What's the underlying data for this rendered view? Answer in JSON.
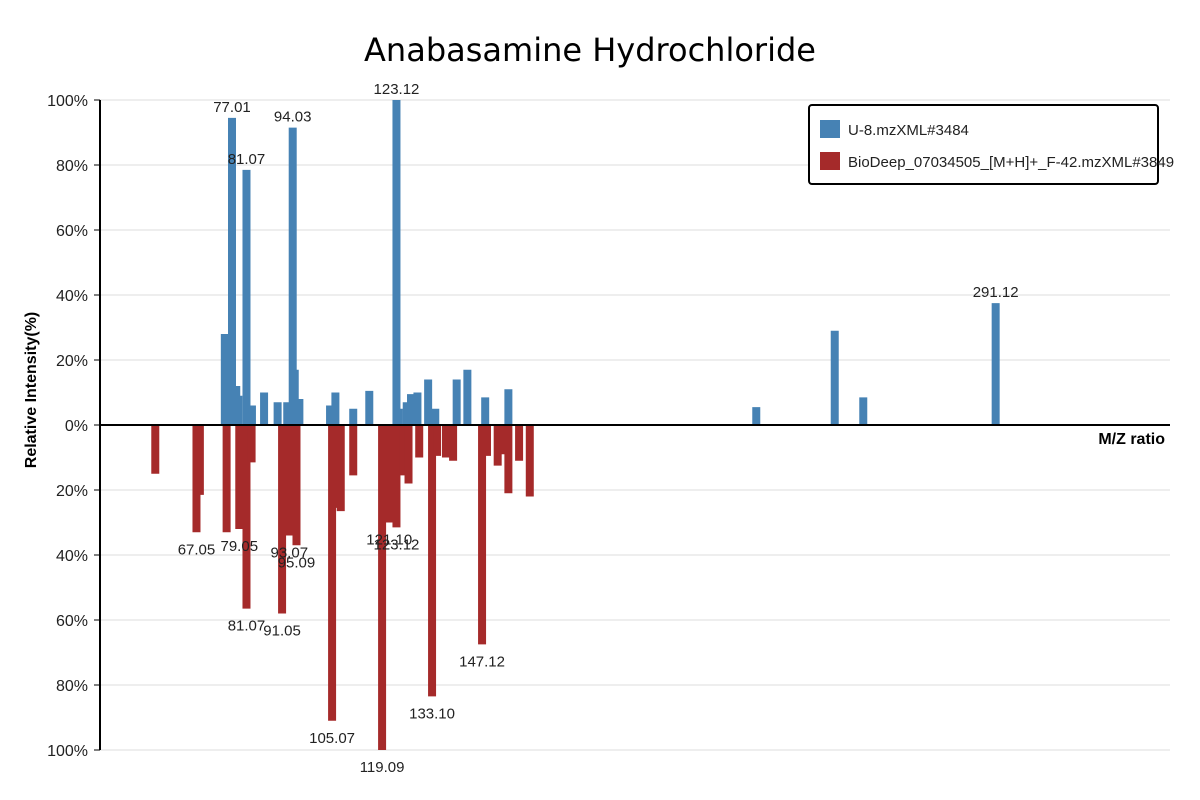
{
  "chart_data": {
    "type": "bar",
    "title": "Anabasamine Hydrochloride",
    "xlabel": "M/Z ratio",
    "ylabel": "Relative Intensity(%)",
    "ylim": [
      -100,
      100
    ],
    "xlim": [
      40,
      340
    ],
    "y_ticks": [
      {
        "value": 100,
        "label": "100%"
      },
      {
        "value": 80,
        "label": "80%"
      },
      {
        "value": 60,
        "label": "60%"
      },
      {
        "value": 40,
        "label": "40%"
      },
      {
        "value": 20,
        "label": "20%"
      },
      {
        "value": 0,
        "label": "0%"
      },
      {
        "value": -20,
        "label": "20%"
      },
      {
        "value": -40,
        "label": "40%"
      },
      {
        "value": -60,
        "label": "60%"
      },
      {
        "value": -80,
        "label": "80%"
      },
      {
        "value": -100,
        "label": "100%"
      }
    ],
    "grid": true,
    "legend_position": "top-right",
    "series": [
      {
        "name": "U-8.mzXML#3484",
        "color": "#4682b4",
        "direction": "up",
        "peaks": [
          {
            "x": 75.0,
            "y": 28
          },
          {
            "x": 76.5,
            "y": 9
          },
          {
            "x": 77.01,
            "y": 94.5,
            "label": "77.01"
          },
          {
            "x": 78.2,
            "y": 12
          },
          {
            "x": 78.8,
            "y": 9
          },
          {
            "x": 81.07,
            "y": 78.5,
            "label": "81.07"
          },
          {
            "x": 82.6,
            "y": 6
          },
          {
            "x": 86.0,
            "y": 10
          },
          {
            "x": 89.8,
            "y": 7
          },
          {
            "x": 94.03,
            "y": 91.5,
            "label": "94.03"
          },
          {
            "x": 92.5,
            "y": 7
          },
          {
            "x": 94.6,
            "y": 17
          },
          {
            "x": 95.9,
            "y": 8
          },
          {
            "x": 104.5,
            "y": 6
          },
          {
            "x": 106.0,
            "y": 10
          },
          {
            "x": 111.0,
            "y": 5
          },
          {
            "x": 115.5,
            "y": 10.5
          },
          {
            "x": 123.12,
            "y": 100,
            "label": "123.12"
          },
          {
            "x": 123.8,
            "y": 5
          },
          {
            "x": 126.0,
            "y": 7
          },
          {
            "x": 127.2,
            "y": 9.5
          },
          {
            "x": 129.0,
            "y": 10
          },
          {
            "x": 132.0,
            "y": 14
          },
          {
            "x": 134.0,
            "y": 5
          },
          {
            "x": 140.0,
            "y": 14
          },
          {
            "x": 143.0,
            "y": 17
          },
          {
            "x": 148.0,
            "y": 8.5
          },
          {
            "x": 154.5,
            "y": 11
          },
          {
            "x": 224.0,
            "y": 5.5
          },
          {
            "x": 246.0,
            "y": 29
          },
          {
            "x": 254.0,
            "y": 8.5
          },
          {
            "x": 291.12,
            "y": 37.5,
            "label": "291.12"
          }
        ]
      },
      {
        "name": "BioDeep_07034505_[M+H]+_F-42.mzXML#3849",
        "color": "#a52a2a",
        "direction": "down",
        "peaks": [
          {
            "x": 67.05,
            "y": 33,
            "label": "67.05"
          },
          {
            "x": 68.0,
            "y": 21.5
          },
          {
            "x": 55.5,
            "y": 15
          },
          {
            "x": 75.5,
            "y": 33
          },
          {
            "x": 79.05,
            "y": 32,
            "label": "79.05"
          },
          {
            "x": 81.07,
            "y": 56.5,
            "label": "81.07"
          },
          {
            "x": 82.5,
            "y": 11.5
          },
          {
            "x": 91.05,
            "y": 58,
            "label": "91.05"
          },
          {
            "x": 93.07,
            "y": 34,
            "label": "93.07"
          },
          {
            "x": 95.09,
            "y": 37,
            "label": "95.09"
          },
          {
            "x": 105.07,
            "y": 91,
            "label": "105.07"
          },
          {
            "x": 106.5,
            "y": 25.5
          },
          {
            "x": 107.5,
            "y": 26.5
          },
          {
            "x": 111.0,
            "y": 15.5
          },
          {
            "x": 119.09,
            "y": 100,
            "label": "119.09"
          },
          {
            "x": 121.1,
            "y": 30,
            "label": "121.10"
          },
          {
            "x": 123.12,
            "y": 31.5,
            "label": "123.12"
          },
          {
            "x": 125.0,
            "y": 15.5
          },
          {
            "x": 126.5,
            "y": 18
          },
          {
            "x": 133.1,
            "y": 83.5,
            "label": "133.10"
          },
          {
            "x": 129.5,
            "y": 10
          },
          {
            "x": 134.5,
            "y": 9.5
          },
          {
            "x": 137.0,
            "y": 10
          },
          {
            "x": 139.0,
            "y": 11
          },
          {
            "x": 147.12,
            "y": 67.5,
            "label": "147.12"
          },
          {
            "x": 148.5,
            "y": 9.5
          },
          {
            "x": 151.5,
            "y": 12.5
          },
          {
            "x": 153.5,
            "y": 9
          },
          {
            "x": 154.5,
            "y": 21
          },
          {
            "x": 157.5,
            "y": 11
          },
          {
            "x": 160.5,
            "y": 22
          }
        ]
      }
    ]
  }
}
